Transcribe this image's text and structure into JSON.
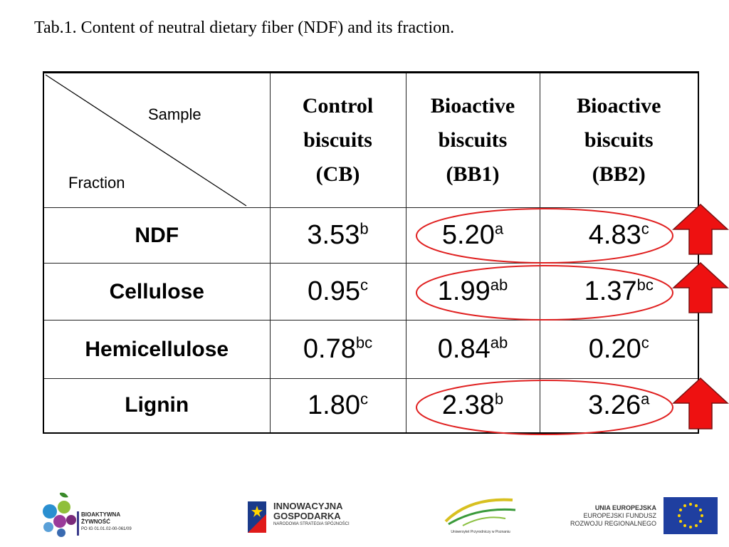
{
  "title": "Tab.1. Content of neutral dietary fiber (NDF) and its fraction.",
  "corner": {
    "sample": "Sample",
    "fraction": "Fraction"
  },
  "headers": [
    {
      "line1": "Control",
      "line2": "biscuits",
      "line3": "(CB)"
    },
    {
      "line1": "Bioactive",
      "line2": "biscuits",
      "line3": "(BB1)"
    },
    {
      "line1": "Bioactive",
      "line2": "biscuits",
      "line3": "(BB2)"
    }
  ],
  "rows": [
    {
      "label": "NDF",
      "cells": [
        {
          "v": "3.53",
          "s": "b"
        },
        {
          "v": "5.20",
          "s": "a"
        },
        {
          "v": "4.83",
          "s": "c"
        }
      ]
    },
    {
      "label": "Cellulose",
      "cells": [
        {
          "v": "0.95",
          "s": "c"
        },
        {
          "v": "1.99",
          "s": "ab"
        },
        {
          "v": "1.37",
          "s": "bc"
        }
      ]
    },
    {
      "label": "Hemicellulose",
      "cells": [
        {
          "v": "0.78",
          "s": "bc"
        },
        {
          "v": "0.84",
          "s": "ab"
        },
        {
          "v": "0.20",
          "s": "c"
        }
      ]
    },
    {
      "label": "Lignin",
      "cells": [
        {
          "v": "1.80",
          "s": "c"
        },
        {
          "v": "2.38",
          "s": "b"
        },
        {
          "v": "3.26",
          "s": "a"
        }
      ]
    }
  ],
  "highlight_color": "#e02020",
  "arrow_color": "#ee1111",
  "footer": {
    "logo1_lines": [
      "BIOAKTYWNA",
      "ŻYWNOŚĆ",
      "PO IG 01.01.02-00-061/09"
    ],
    "logo2_lines": [
      "INNOWACYJNA",
      "GOSPODARKA",
      "NARODOWA STRATEGIA SPÓJNOŚCI"
    ],
    "logo3_caption": "Uniwersytet Przyrodniczy w Poznaniu",
    "logo4_lines": [
      "UNIA EUROPEJSKA",
      "EUROPEJSKI FUNDUSZ",
      "ROZWOJU REGIONALNEGO"
    ]
  }
}
